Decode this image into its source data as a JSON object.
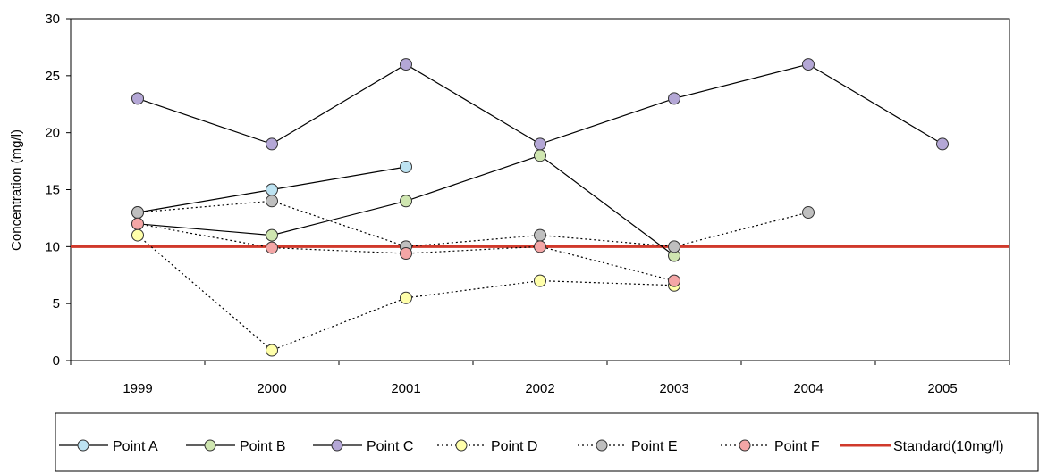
{
  "chart_data": {
    "type": "line",
    "title": "",
    "xlabel": "",
    "ylabel": "Concentration (mg/l)",
    "categories": [
      "1999",
      "2000",
      "2001",
      "2002",
      "2003",
      "2004",
      "2005"
    ],
    "yticks": [
      "0",
      "5",
      "10",
      "15",
      "20",
      "25",
      "30"
    ],
    "ylim": [
      0,
      30
    ],
    "grid": false,
    "legend_position": "bottom",
    "series": [
      {
        "name": "Point A",
        "values": [
          13,
          15,
          17,
          null,
          null,
          null,
          null
        ],
        "color": "#bde3f2",
        "line": "solid"
      },
      {
        "name": "Point B",
        "values": [
          12,
          11,
          14,
          18,
          9.2,
          null,
          null
        ],
        "color": "#cfe6b0",
        "line": "solid"
      },
      {
        "name": "Point C",
        "values": [
          23,
          19,
          26,
          19,
          23,
          26,
          19
        ],
        "color": "#b4a7d6",
        "line": "solid"
      },
      {
        "name": "Point D",
        "values": [
          11,
          0.9,
          5.5,
          7,
          6.6,
          null,
          null
        ],
        "color": "#ffffaa",
        "line": "dotted"
      },
      {
        "name": "Point E",
        "values": [
          13,
          14,
          10,
          11,
          10,
          13,
          null
        ],
        "color": "#bfbfbf",
        "line": "dotted"
      },
      {
        "name": "Point F",
        "values": [
          12,
          9.9,
          9.4,
          10,
          7,
          null,
          null
        ],
        "color": "#f4a6a6",
        "line": "dotted"
      }
    ],
    "reference_line": {
      "name": "Standard(10mg/l)",
      "value": 10,
      "color": "#d0392b"
    }
  }
}
